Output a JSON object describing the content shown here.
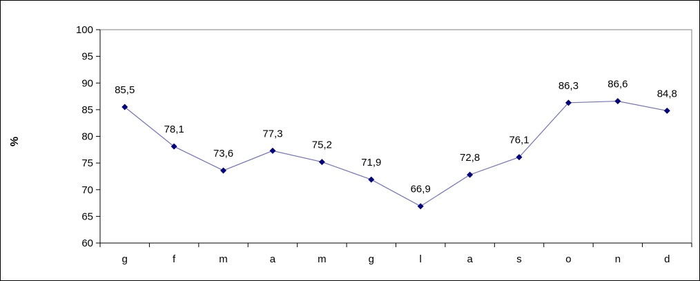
{
  "chart_data": {
    "type": "line",
    "categories": [
      "g",
      "f",
      "m",
      "a",
      "m",
      "g",
      "l",
      "a",
      "s",
      "o",
      "n",
      "d"
    ],
    "values": [
      85.5,
      78.1,
      73.6,
      77.3,
      75.2,
      71.9,
      66.9,
      72.8,
      76.1,
      86.3,
      86.6,
      84.8
    ],
    "data_labels": [
      "85,5",
      "78,1",
      "73,6",
      "77,3",
      "75,2",
      "71,9",
      "66,9",
      "72,8",
      "76,1",
      "86,3",
      "86,6",
      "84,8"
    ],
    "ylabel": "%",
    "ylim": [
      60,
      100
    ],
    "yticks": [
      100,
      95,
      90,
      85,
      80,
      75,
      70,
      65,
      60
    ],
    "grid": false,
    "legend": "none",
    "colors": {
      "line": "#7070c8",
      "marker": "#000080",
      "axis": "#000000"
    }
  }
}
